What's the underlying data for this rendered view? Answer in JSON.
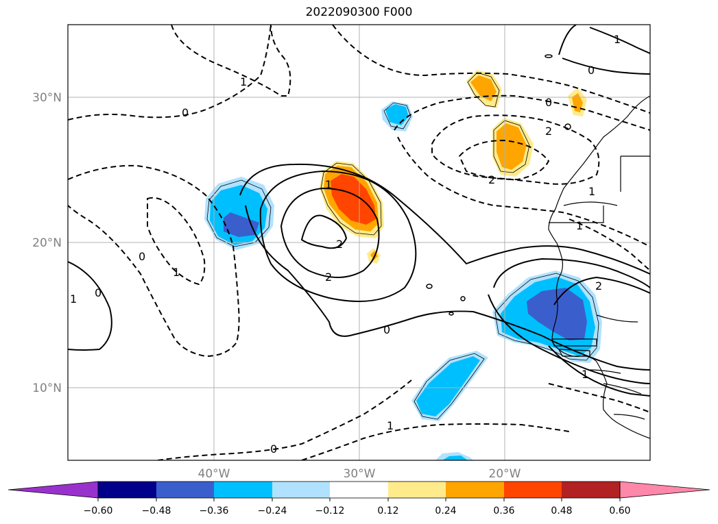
{
  "title": "2022090300 F000",
  "lat_labels": [
    "30°N",
    "20°N",
    "10°N"
  ],
  "lon_labels": [
    "40°W",
    "30°W",
    "20°W"
  ],
  "contour_labels": [
    "1",
    "0",
    "1",
    "0",
    "0",
    "2",
    "2",
    "1",
    "2",
    "2",
    "1",
    "0",
    "1",
    "1",
    "0",
    "1",
    "1",
    "0",
    "2",
    "1",
    "0"
  ],
  "colorbar": {
    "ticks": [
      "−0.60",
      "−0.48",
      "−0.36",
      "−0.24",
      "−0.12",
      "0.12",
      "0.24",
      "0.36",
      "0.48",
      "0.60"
    ],
    "colors": [
      "#9932cc",
      "#00008b",
      "#3a5fcd",
      "#00bfff",
      "#b0e2ff",
      "#ffffff",
      "#ffeb8c",
      "#ffa500",
      "#ff4500",
      "#b22222",
      "#ff88aa"
    ]
  }
}
